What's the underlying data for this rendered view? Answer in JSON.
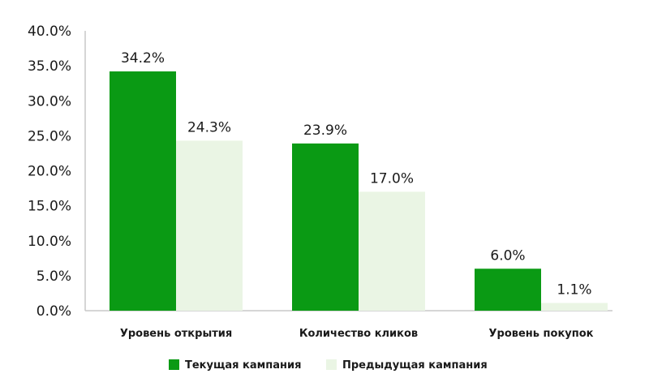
{
  "chart_data": {
    "type": "bar",
    "categories": [
      "Уровень открытия",
      "Количество кликов",
      "Уровень покупок"
    ],
    "series": [
      {
        "name": "Текущая кампания",
        "values": [
          34.2,
          23.9,
          6.0
        ],
        "labels": [
          "34.2%",
          "23.9%",
          "6.0%"
        ],
        "color": "#0a9a14"
      },
      {
        "name": "Предыдущая кампания",
        "values": [
          24.3,
          17.0,
          1.1
        ],
        "labels": [
          "24.3%",
          "17.0%",
          "1.1%"
        ],
        "color": "#eaf5e4"
      }
    ],
    "title": "",
    "xlabel": "",
    "ylabel": "",
    "ylim": [
      0,
      40
    ],
    "yticks": [
      0,
      5,
      10,
      15,
      20,
      25,
      30,
      35,
      40
    ],
    "ytick_labels": [
      "0.0%",
      "5.0%",
      "10.0%",
      "15.0%",
      "20.0%",
      "25.0%",
      "30.0%",
      "35.0%",
      "40.0%"
    ],
    "grid": false,
    "legend": "bottom",
    "axis_color": "#c8c8c8"
  }
}
